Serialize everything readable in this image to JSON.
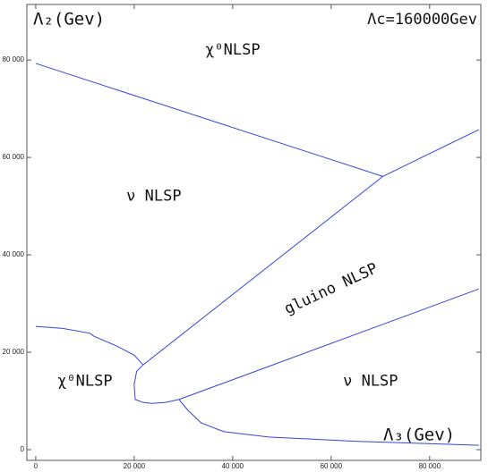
{
  "chart_data": {
    "type": "line",
    "xlabel": "Λ₃(Gev)",
    "ylabel": "Λ₂(Gev)",
    "note": "Λc=160000Gev",
    "annotations": [
      {
        "text": "χ⁰NLSP",
        "x": 40000,
        "y": 82000
      },
      {
        "text": "ν NLSP",
        "x": 24000,
        "y": 52000
      },
      {
        "text": "gluino NLSP",
        "x": 60000,
        "y": 33000,
        "rotate": -25
      },
      {
        "text": "χ⁰NLSP",
        "x": 10000,
        "y": 14000
      },
      {
        "text": "ν NLSP",
        "x": 68000,
        "y": 14000
      }
    ],
    "series": [
      {
        "color": "#3344dd",
        "x": [
          0,
          70500
        ],
        "values": [
          79300,
          56100
        ]
      },
      {
        "color": "#3344dd",
        "x": [
          70500,
          90000
        ],
        "values": [
          56100,
          65700
        ]
      },
      {
        "color": "#3344dd",
        "x": [
          70500,
          21800,
          20500,
          20000,
          20200,
          21800,
          23600,
          26400,
          29100
        ],
        "values": [
          56100,
          17400,
          16100,
          13400,
          10300,
          9700,
          9500,
          9700,
          10300
        ]
      },
      {
        "color": "#3344dd",
        "x": [
          29100,
          90000
        ],
        "values": [
          10300,
          33000
        ]
      },
      {
        "color": "#3344dd",
        "x": [
          0,
          5500,
          11000,
          11800,
          16400,
          20000,
          21800
        ],
        "values": [
          25300,
          24900,
          23900,
          23300,
          21300,
          19400,
          17400
        ]
      },
      {
        "color": "#3344dd",
        "x": [
          29100,
          30900,
          33600,
          38200,
          47300,
          65500,
          90000
        ],
        "values": [
          10300,
          8100,
          5500,
          3700,
          2600,
          1700,
          900
        ]
      }
    ],
    "xlim": [
      -1800,
      90400
    ],
    "ylim": [
      -2200,
      91400
    ],
    "xticks": [
      0,
      {
        "value": 20000,
        "label": "20 000"
      },
      {
        "value": 40000,
        "label": "40 000"
      },
      {
        "value": 60000,
        "label": "60 000"
      },
      {
        "value": 80000,
        "label": "80 000"
      }
    ],
    "yticks": [
      0,
      {
        "value": 20000,
        "label": "20 000"
      },
      {
        "value": 40000,
        "label": "40 000"
      },
      {
        "value": 60000,
        "label": "60 000"
      },
      {
        "value": 80000,
        "label": "80 000"
      }
    ]
  }
}
